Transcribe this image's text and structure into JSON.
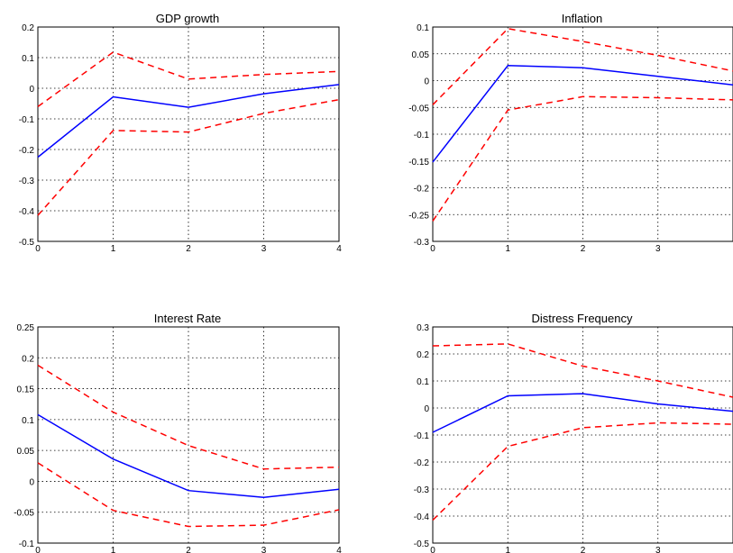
{
  "chart_data": [
    {
      "type": "line",
      "title": "GDP growth",
      "x": [
        0,
        1,
        2,
        3,
        4
      ],
      "xlim": [
        0,
        4
      ],
      "ylim": [
        -0.5,
        0.2
      ],
      "xticks": [
        "0",
        "1",
        "2",
        "3",
        "4"
      ],
      "yticks": [
        "-0.5",
        "-0.4",
        "-0.3",
        "-0.2",
        "-0.1",
        "0",
        "0.1",
        "0.2"
      ],
      "grid": true,
      "series": [
        {
          "values": [
            -0.225,
            -0.028,
            -0.062,
            -0.018,
            0.012
          ],
          "color": "#0000ff",
          "style": "solid"
        },
        {
          "values": [
            -0.06,
            0.118,
            0.03,
            0.045,
            0.055
          ],
          "color": "#ff0000",
          "style": "dashed"
        },
        {
          "values": [
            -0.415,
            -0.138,
            -0.143,
            -0.082,
            -0.037
          ],
          "color": "#ff0000",
          "style": "dashed"
        }
      ]
    },
    {
      "type": "line",
      "title": "Inflation",
      "x": [
        0,
        1,
        2,
        3,
        4
      ],
      "xlim": [
        0,
        4
      ],
      "ylim": [
        -0.3,
        0.1
      ],
      "xticks": [
        "0",
        "1",
        "2",
        "3"
      ],
      "yticks": [
        "-0.3",
        "-0.25",
        "-0.2",
        "-0.15",
        "-0.1",
        "-0.05",
        "0",
        "0.05",
        "0.1"
      ],
      "grid": true,
      "series": [
        {
          "values": [
            -0.152,
            0.028,
            0.024,
            0.008,
            -0.008
          ],
          "color": "#0000ff",
          "style": "solid"
        },
        {
          "values": [
            -0.045,
            0.097,
            0.073,
            0.047,
            0.018
          ],
          "color": "#ff0000",
          "style": "dashed"
        },
        {
          "values": [
            -0.262,
            -0.055,
            -0.03,
            -0.032,
            -0.036
          ],
          "color": "#ff0000",
          "style": "dashed"
        }
      ]
    },
    {
      "type": "line",
      "title": "Interest Rate",
      "x": [
        0,
        1,
        2,
        3,
        4
      ],
      "xlim": [
        0,
        4
      ],
      "ylim": [
        -0.1,
        0.25
      ],
      "xticks": [
        "0",
        "1",
        "2",
        "3",
        "4"
      ],
      "yticks": [
        "-0.1",
        "-0.05",
        "0",
        "0.05",
        "0.1",
        "0.15",
        "0.2",
        "0.25"
      ],
      "grid": true,
      "series": [
        {
          "values": [
            0.108,
            0.036,
            -0.015,
            -0.026,
            -0.013
          ],
          "color": "#0000ff",
          "style": "solid"
        },
        {
          "values": [
            0.188,
            0.112,
            0.058,
            0.02,
            0.023
          ],
          "color": "#ff0000",
          "style": "dashed"
        },
        {
          "values": [
            0.03,
            -0.047,
            -0.073,
            -0.071,
            -0.046
          ],
          "color": "#ff0000",
          "style": "dashed"
        }
      ]
    },
    {
      "type": "line",
      "title": "Distress Frequency",
      "x": [
        0,
        1,
        2,
        3,
        4
      ],
      "xlim": [
        0,
        4
      ],
      "ylim": [
        -0.5,
        0.3
      ],
      "xticks": [
        "0",
        "1",
        "2",
        "3"
      ],
      "yticks": [
        "-0.5",
        "-0.4",
        "-0.3",
        "-0.2",
        "-0.1",
        "0",
        "0.1",
        "0.2",
        "0.3"
      ],
      "grid": true,
      "series": [
        {
          "values": [
            -0.09,
            0.045,
            0.053,
            0.015,
            -0.012
          ],
          "color": "#0000ff",
          "style": "solid"
        },
        {
          "values": [
            0.23,
            0.237,
            0.155,
            0.1,
            0.04
          ],
          "color": "#ff0000",
          "style": "dashed"
        },
        {
          "values": [
            -0.415,
            -0.142,
            -0.073,
            -0.055,
            -0.06
          ],
          "color": "#ff0000",
          "style": "dashed"
        }
      ]
    }
  ]
}
